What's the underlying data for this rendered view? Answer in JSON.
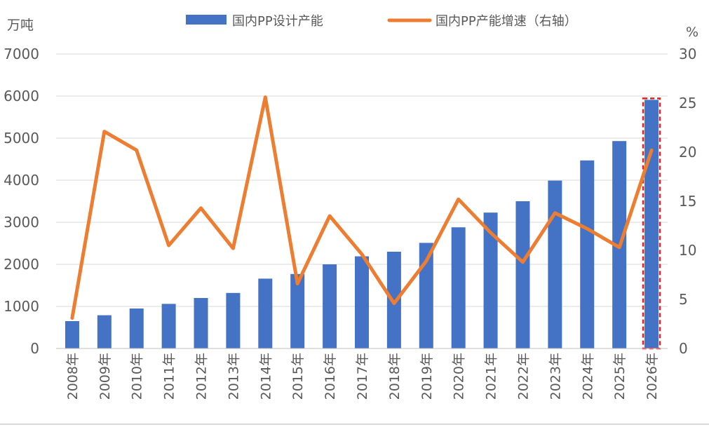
{
  "chart_data": {
    "type": "bar",
    "categories": [
      "2008年",
      "2009年",
      "2010年",
      "2011年",
      "2012年",
      "2013年",
      "2014年",
      "2015年",
      "2016年",
      "2017年",
      "2018年",
      "2019年",
      "2020年",
      "2021年",
      "2022年",
      "2023年",
      "2024年",
      "2025年",
      "2026年"
    ],
    "series": [
      {
        "name": "国内PP设计产能",
        "type": "bar",
        "axis": "left",
        "color": "#4472C4",
        "values": [
          650,
          790,
          950,
          1060,
          1200,
          1320,
          1660,
          1770,
          2000,
          2190,
          2300,
          2510,
          2880,
          3230,
          3500,
          3990,
          4470,
          4930,
          5910
        ]
      },
      {
        "name": "国内PP产能增速（右轴）",
        "type": "line",
        "axis": "right",
        "color": "#ED7D31",
        "values": [
          3.1,
          22.1,
          20.2,
          10.5,
          14.3,
          10.2,
          25.6,
          6.6,
          13.5,
          9.6,
          4.6,
          8.9,
          15.2,
          11.8,
          8.8,
          13.8,
          12.2,
          10.3,
          20.2
        ]
      }
    ],
    "left_axis": {
      "unit": "万吨",
      "min": 0,
      "max": 7000,
      "ticks": [
        0,
        1000,
        2000,
        3000,
        4000,
        5000,
        6000,
        7000
      ]
    },
    "right_axis": {
      "unit": "%",
      "min": 0,
      "max": 30,
      "ticks": [
        0,
        5,
        10,
        15,
        20,
        25,
        30
      ]
    },
    "highlighted_category": "2026年",
    "highlight_color": "#E02020",
    "grid": true,
    "legend_position": "top"
  }
}
